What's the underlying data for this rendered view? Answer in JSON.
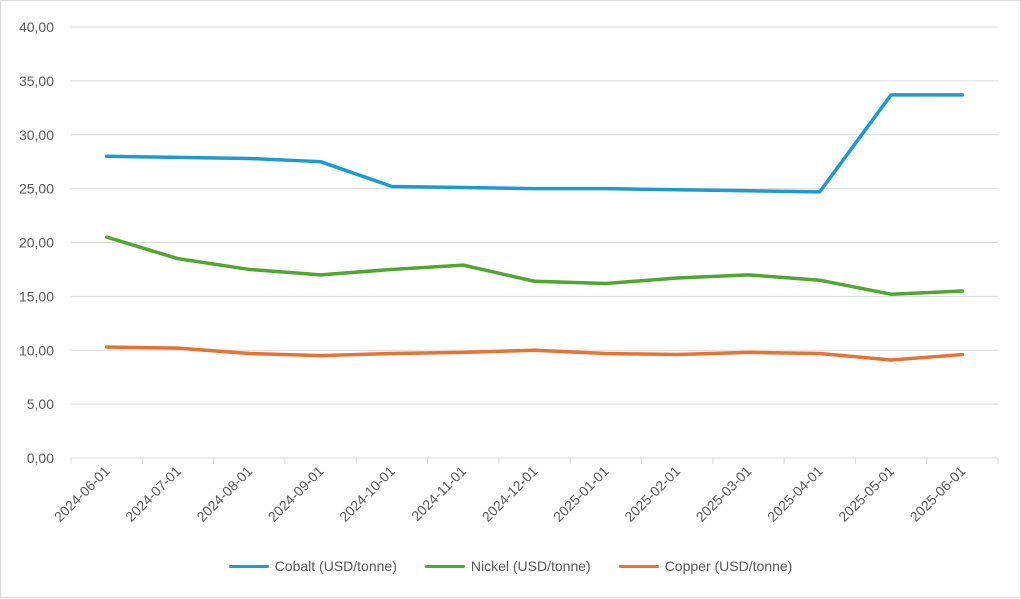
{
  "chart_data": {
    "type": "line",
    "title": "",
    "xlabel": "",
    "ylabel": "",
    "ylim": [
      0,
      40
    ],
    "ytick_step": 5,
    "yticks": [
      "0,00",
      "5,00",
      "10,00",
      "15,00",
      "20,00",
      "25,00",
      "30,00",
      "35,00",
      "40,00"
    ],
    "grid": true,
    "legend_position": "bottom",
    "categories": [
      "2024-06-01",
      "2024-07-01",
      "2024-08-01",
      "2024-09-01",
      "2024-10-01",
      "2024-11-01",
      "2024-12-01",
      "2025-01-01",
      "2025-02-01",
      "2025-03-01",
      "2025-04-01",
      "2025-05-01",
      "2025-06-01"
    ],
    "series": [
      {
        "name": "Cobalt (USD/tonne)",
        "color": "#1a9bd3",
        "values": [
          28.0,
          27.9,
          27.8,
          27.5,
          25.2,
          25.1,
          25.0,
          25.0,
          24.9,
          24.8,
          24.7,
          33.7,
          33.7
        ]
      },
      {
        "name": "Nickel (USD/tonne)",
        "color": "#4ea72e",
        "values": [
          20.5,
          18.5,
          17.5,
          17.0,
          17.5,
          17.9,
          16.4,
          16.2,
          16.7,
          17.0,
          16.5,
          15.2,
          15.5
        ]
      },
      {
        "name": "Copper (USD/tonne)",
        "color": "#e97132",
        "values": [
          10.3,
          10.2,
          9.7,
          9.5,
          9.7,
          9.8,
          10.0,
          9.7,
          9.6,
          9.8,
          9.7,
          9.1,
          9.6
        ]
      }
    ]
  }
}
